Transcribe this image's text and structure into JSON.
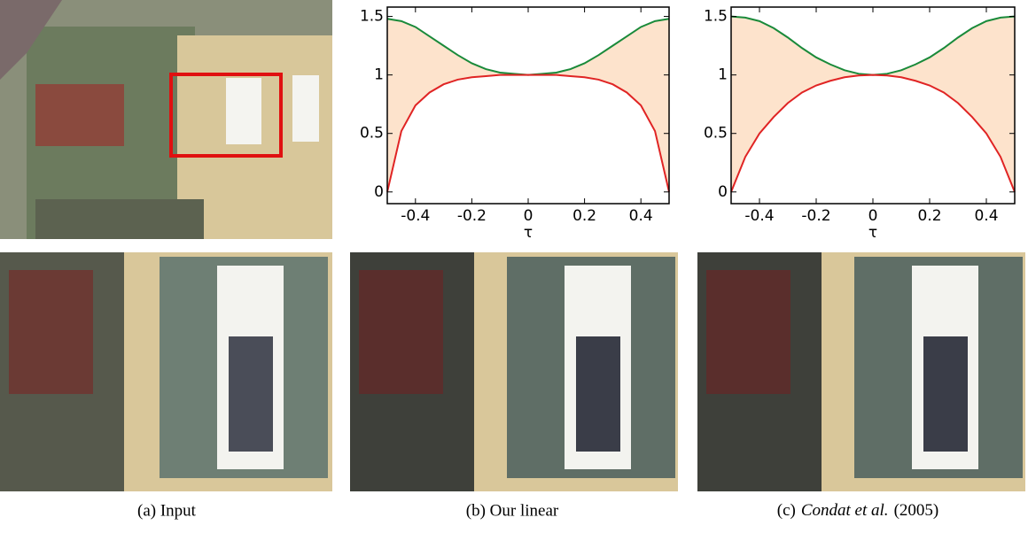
{
  "chart_data": [
    {
      "type": "line",
      "xlabel": "τ",
      "x": [
        -0.5,
        -0.45,
        -0.4,
        -0.35,
        -0.3,
        -0.25,
        -0.2,
        -0.15,
        -0.1,
        -0.05,
        0,
        0.05,
        0.1,
        0.15,
        0.2,
        0.25,
        0.3,
        0.35,
        0.4,
        0.45,
        0.5
      ],
      "series": [
        {
          "color": "#1a8a3a",
          "values": [
            1.48,
            1.46,
            1.41,
            1.33,
            1.25,
            1.17,
            1.1,
            1.05,
            1.02,
            1.01,
            1,
            1.01,
            1.02,
            1.05,
            1.1,
            1.17,
            1.25,
            1.33,
            1.41,
            1.46,
            1.48
          ]
        },
        {
          "color": "#e02424",
          "values": [
            0,
            0.52,
            0.74,
            0.85,
            0.92,
            0.96,
            0.98,
            0.99,
            1,
            1,
            1,
            1,
            1,
            0.99,
            0.98,
            0.96,
            0.92,
            0.85,
            0.74,
            0.52,
            0
          ]
        }
      ],
      "fill_between": "#fde3cc",
      "xlim": [
        -0.5,
        0.5
      ],
      "xticks": [
        -0.4,
        -0.2,
        0,
        0.2,
        0.4
      ],
      "ylim": [
        -0.1,
        1.58
      ],
      "yticks": [
        0,
        0.5,
        1,
        1.5
      ]
    },
    {
      "type": "line",
      "xlabel": "τ",
      "x": [
        -0.5,
        -0.45,
        -0.4,
        -0.35,
        -0.3,
        -0.25,
        -0.2,
        -0.15,
        -0.1,
        -0.05,
        0,
        0.05,
        0.1,
        0.15,
        0.2,
        0.25,
        0.3,
        0.35,
        0.4,
        0.45,
        0.5
      ],
      "series": [
        {
          "color": "#1a8a3a",
          "values": [
            1.5,
            1.49,
            1.46,
            1.4,
            1.32,
            1.23,
            1.15,
            1.09,
            1.04,
            1.01,
            1,
            1.01,
            1.04,
            1.09,
            1.15,
            1.23,
            1.32,
            1.4,
            1.46,
            1.49,
            1.5
          ]
        },
        {
          "color": "#e02424",
          "values": [
            0,
            0.3,
            0.5,
            0.64,
            0.76,
            0.85,
            0.91,
            0.95,
            0.98,
            0.995,
            1,
            0.995,
            0.98,
            0.95,
            0.91,
            0.85,
            0.76,
            0.64,
            0.5,
            0.3,
            0
          ]
        }
      ],
      "fill_between": "#fde3cc",
      "xlim": [
        -0.5,
        0.5
      ],
      "xticks": [
        -0.4,
        -0.2,
        0,
        0.2,
        0.4
      ],
      "ylim": [
        -0.1,
        1.58
      ],
      "yticks": [
        0,
        0.5,
        1,
        1.5
      ]
    }
  ],
  "captions": {
    "a": "(a) Input",
    "b": "(b) Our linear",
    "c_label": "(c)",
    "c_italic": "Condat et al.",
    "c_year": "(2005)"
  }
}
